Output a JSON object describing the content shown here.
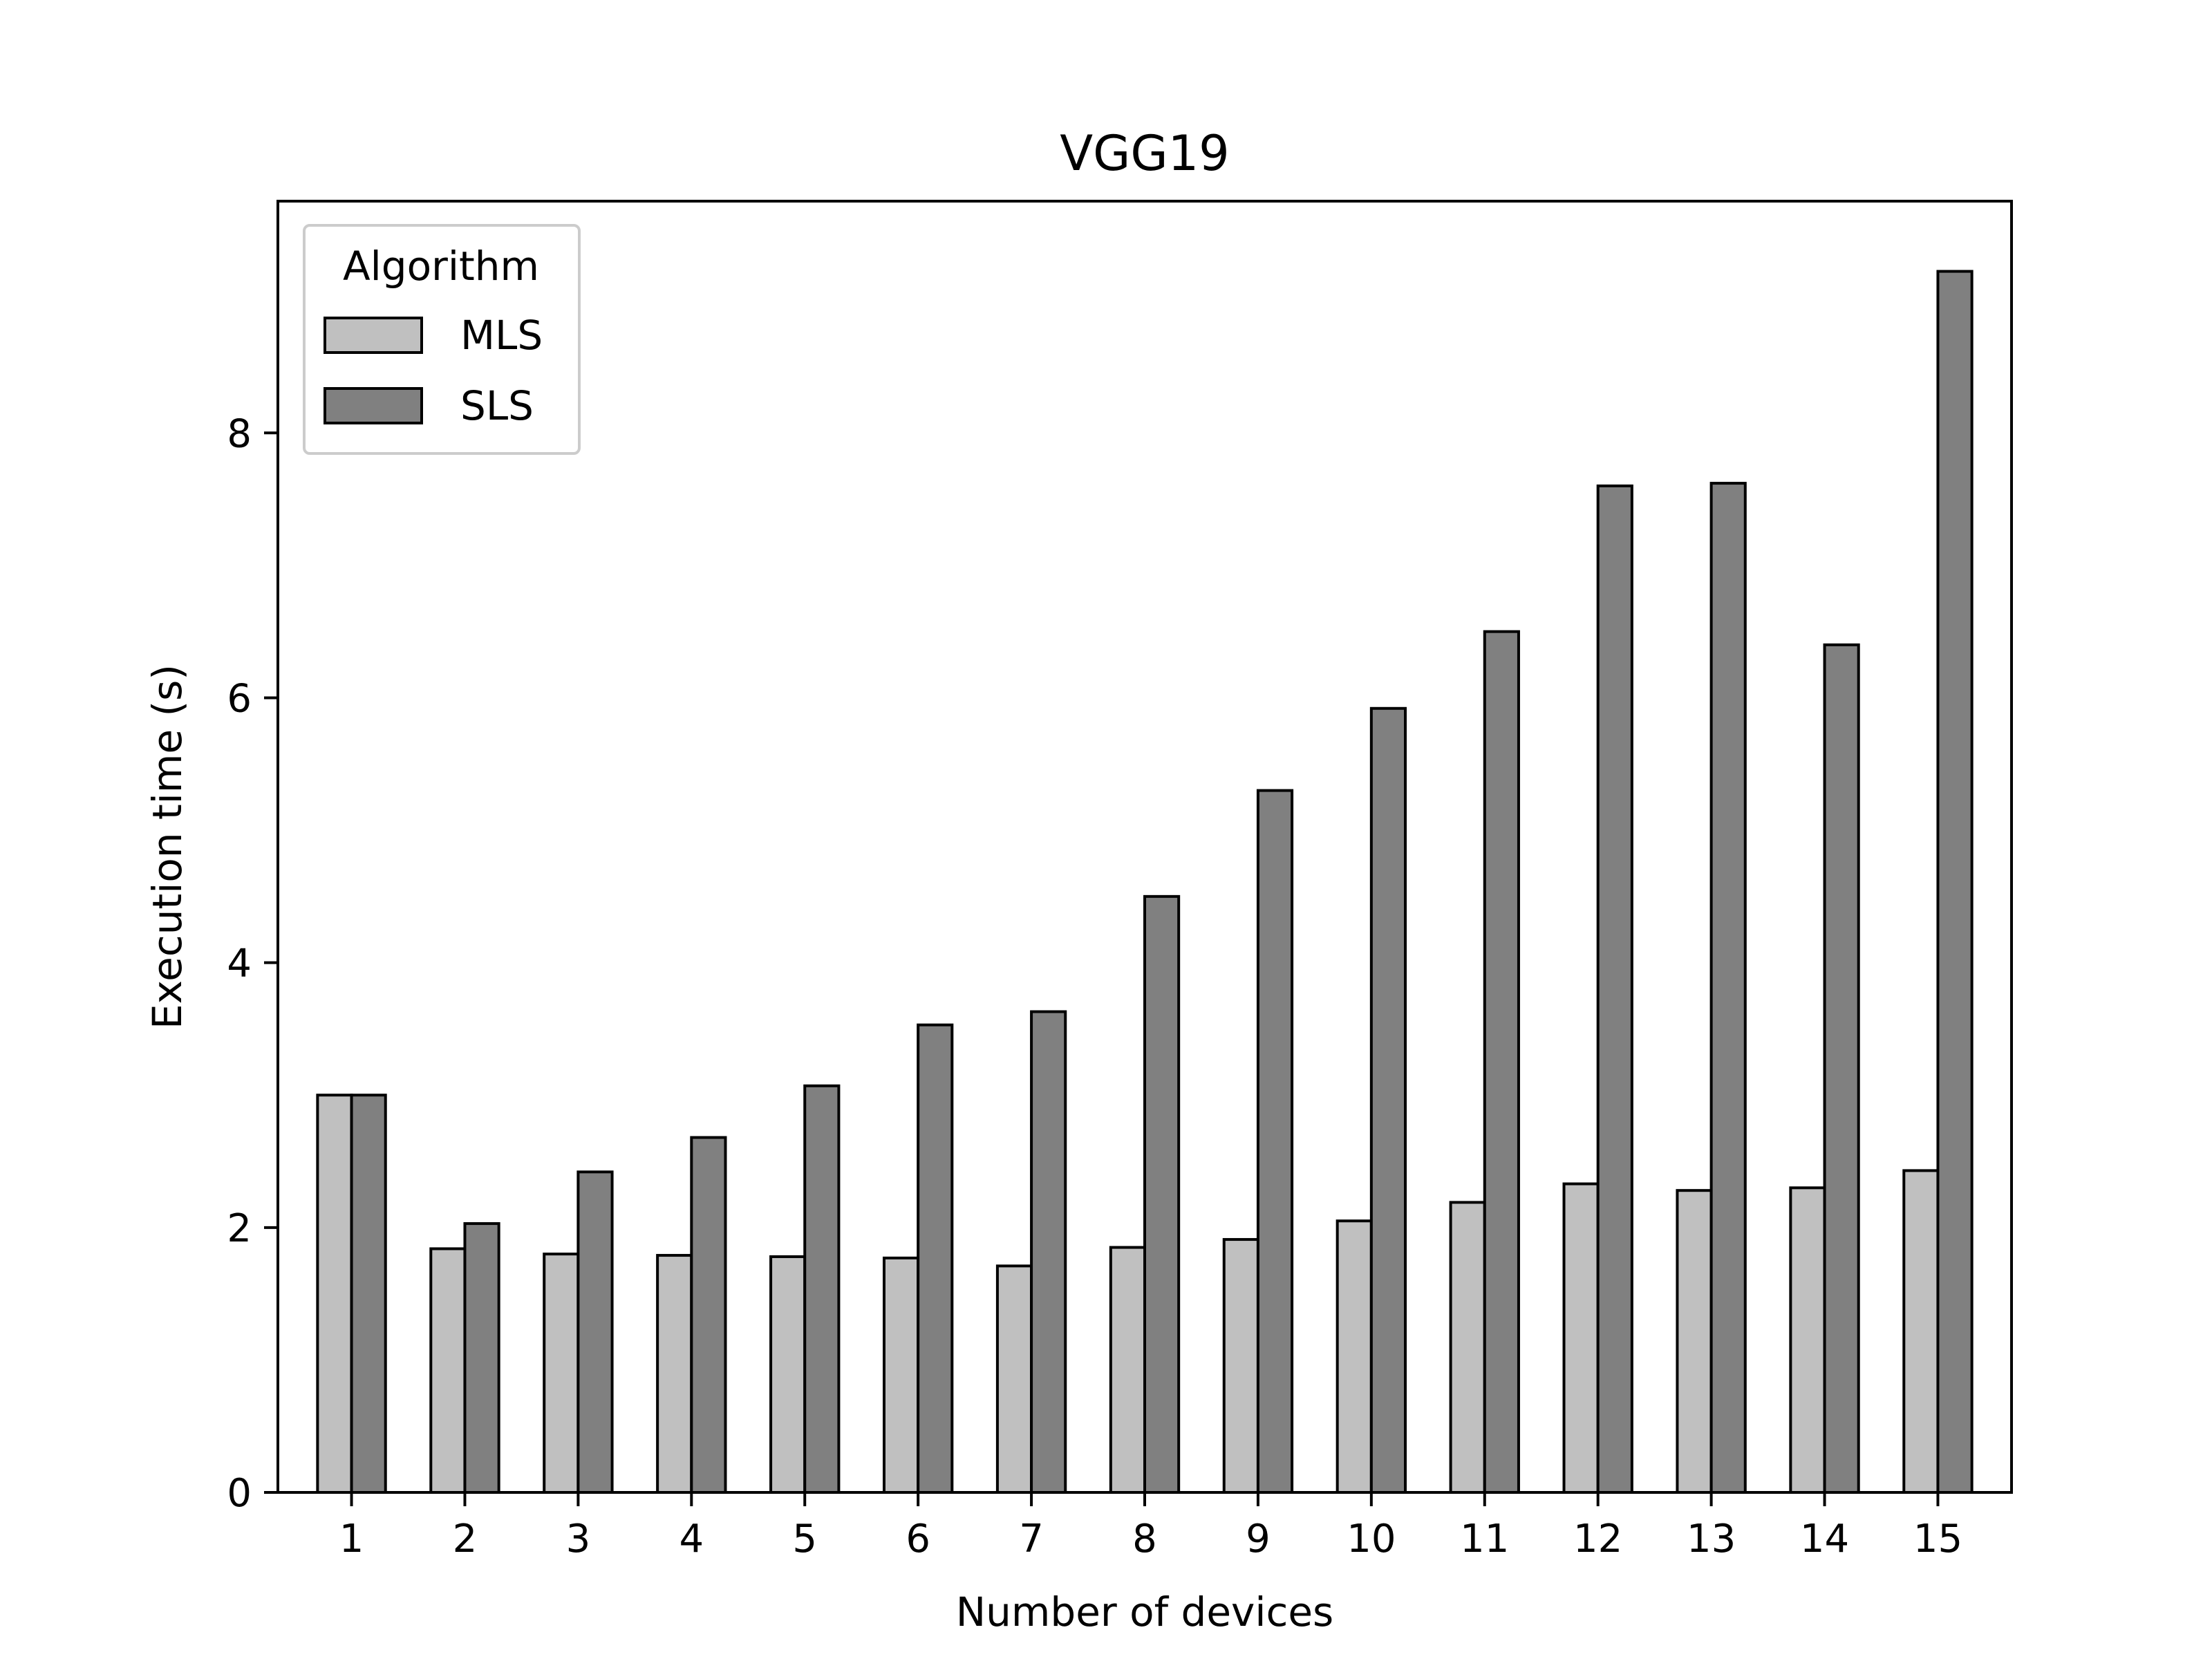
{
  "chart_data": {
    "type": "bar",
    "title": "VGG19",
    "xlabel": "Number of devices",
    "ylabel": "Execution time (s)",
    "categories": [
      "1",
      "2",
      "3",
      "4",
      "5",
      "6",
      "7",
      "8",
      "9",
      "10",
      "11",
      "12",
      "13",
      "14",
      "15"
    ],
    "series": [
      {
        "name": "MLS",
        "color": "#c0c0c0",
        "values": [
          3.0,
          1.84,
          1.8,
          1.79,
          1.78,
          1.77,
          1.71,
          1.85,
          1.91,
          2.05,
          2.19,
          2.33,
          2.28,
          2.3,
          2.43
        ]
      },
      {
        "name": "SLS",
        "color": "#808080",
        "values": [
          3.0,
          2.03,
          2.42,
          2.68,
          3.07,
          3.53,
          3.63,
          4.5,
          5.3,
          5.92,
          6.5,
          7.6,
          7.62,
          6.4,
          9.22
        ]
      }
    ],
    "ylim": [
      0,
      9.75
    ],
    "yticks": [
      0,
      2,
      4,
      6,
      8
    ],
    "legend": {
      "title": "Algorithm",
      "placement": "top-left"
    },
    "grid": false
  }
}
